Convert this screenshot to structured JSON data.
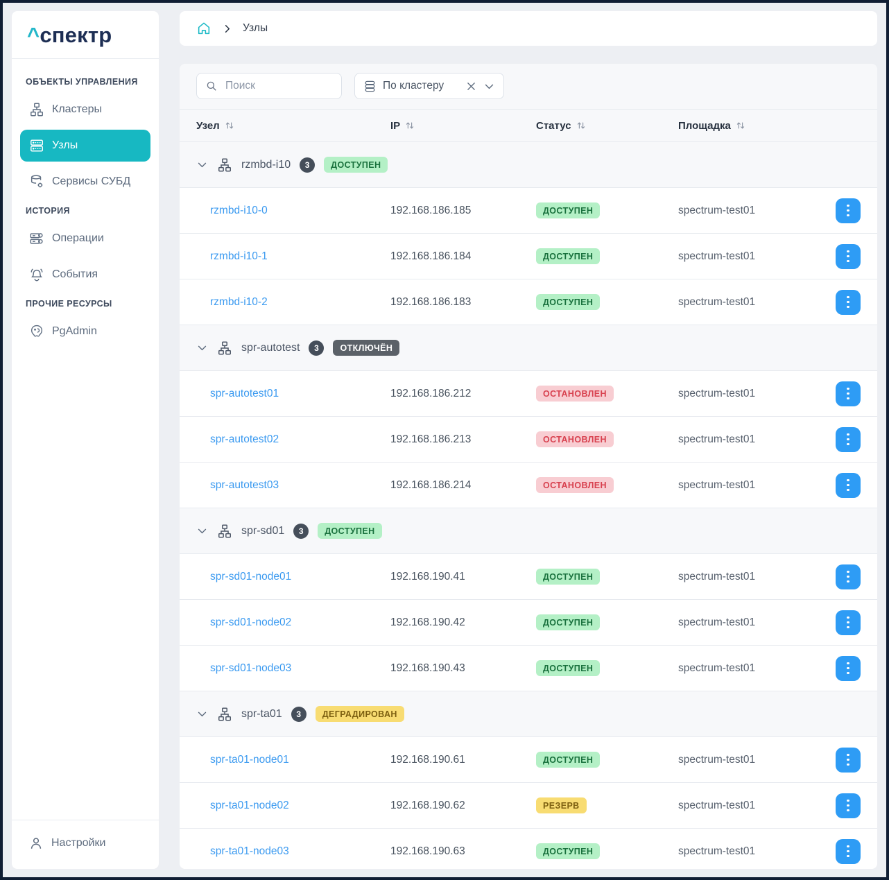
{
  "app": {
    "logo_caret": "^",
    "logo_text": "спектр"
  },
  "colors": {
    "accent_teal": "#17b8c2",
    "logo_navy": "#1d2e54",
    "link_blue": "#3b9af0",
    "action_button_blue": "#2e9cf5",
    "badge_green_bg": "#b4f0c6",
    "badge_green_text": "#19713d",
    "badge_red_bg": "#f8cdd2",
    "badge_red_text": "#d8414f",
    "badge_dark_bg": "#5b6168",
    "badge_dark_text": "#ffffff",
    "badge_yellow_bg": "#f8dc72",
    "badge_yellow_text": "#7c5f10"
  },
  "sidebar": {
    "sections": [
      {
        "label": "ОБЪЕКТЫ УПРАВЛЕНИЯ",
        "items": [
          {
            "label": "Кластеры",
            "icon": "cluster-icon",
            "active": false
          },
          {
            "label": "Узлы",
            "icon": "nodes-icon",
            "active": true
          },
          {
            "label": "Сервисы СУБД",
            "icon": "db-services-icon",
            "active": false
          }
        ]
      },
      {
        "label": "ИСТОРИЯ",
        "items": [
          {
            "label": "Операции",
            "icon": "operations-icon",
            "active": false
          },
          {
            "label": "События",
            "icon": "events-icon",
            "active": false
          }
        ]
      },
      {
        "label": "ПРОЧИЕ РЕСУРСЫ",
        "items": [
          {
            "label": "PgAdmin",
            "icon": "pgadmin-icon",
            "active": false
          }
        ]
      }
    ],
    "footer": {
      "label": "Настройки",
      "icon": "user-icon"
    }
  },
  "breadcrumb": {
    "current": "Узлы"
  },
  "toolbar": {
    "search_placeholder": "Поиск",
    "filter": {
      "label": "По кластеру",
      "icon": "group-by-icon"
    }
  },
  "table": {
    "columns": [
      "Узел",
      "IP",
      "Статус",
      "Площадка"
    ],
    "groups": [
      {
        "name": "rzmbd-i10",
        "count": "3",
        "status": "ДОСТУПЕН",
        "status_type": "available",
        "nodes": [
          {
            "name": "rzmbd-i10-0",
            "ip": "192.168.186.185",
            "status": "ДОСТУПЕН",
            "status_type": "available",
            "site": "spectrum-test01"
          },
          {
            "name": "rzmbd-i10-1",
            "ip": "192.168.186.184",
            "status": "ДОСТУПЕН",
            "status_type": "available",
            "site": "spectrum-test01"
          },
          {
            "name": "rzmbd-i10-2",
            "ip": "192.168.186.183",
            "status": "ДОСТУПЕН",
            "status_type": "available",
            "site": "spectrum-test01"
          }
        ]
      },
      {
        "name": "spr-autotest",
        "count": "3",
        "status": "ОТКЛЮЧЁН",
        "status_type": "disabled",
        "nodes": [
          {
            "name": "spr-autotest01",
            "ip": "192.168.186.212",
            "status": "ОСТАНОВЛЕН",
            "status_type": "stopped",
            "site": "spectrum-test01"
          },
          {
            "name": "spr-autotest02",
            "ip": "192.168.186.213",
            "status": "ОСТАНОВЛЕН",
            "status_type": "stopped",
            "site": "spectrum-test01"
          },
          {
            "name": "spr-autotest03",
            "ip": "192.168.186.214",
            "status": "ОСТАНОВЛЕН",
            "status_type": "stopped",
            "site": "spectrum-test01"
          }
        ]
      },
      {
        "name": "spr-sd01",
        "count": "3",
        "status": "ДОСТУПЕН",
        "status_type": "available",
        "nodes": [
          {
            "name": "spr-sd01-node01",
            "ip": "192.168.190.41",
            "status": "ДОСТУПЕН",
            "status_type": "available",
            "site": "spectrum-test01"
          },
          {
            "name": "spr-sd01-node02",
            "ip": "192.168.190.42",
            "status": "ДОСТУПЕН",
            "status_type": "available",
            "site": "spectrum-test01"
          },
          {
            "name": "spr-sd01-node03",
            "ip": "192.168.190.43",
            "status": "ДОСТУПЕН",
            "status_type": "available",
            "site": "spectrum-test01"
          }
        ]
      },
      {
        "name": "spr-ta01",
        "count": "3",
        "status": "ДЕГРАДИРОВАН",
        "status_type": "degraded",
        "nodes": [
          {
            "name": "spr-ta01-node01",
            "ip": "192.168.190.61",
            "status": "ДОСТУПЕН",
            "status_type": "available",
            "site": "spectrum-test01"
          },
          {
            "name": "spr-ta01-node02",
            "ip": "192.168.190.62",
            "status": "РЕЗЕРВ",
            "status_type": "reserve",
            "site": "spectrum-test01"
          },
          {
            "name": "spr-ta01-node03",
            "ip": "192.168.190.63",
            "status": "ДОСТУПЕН",
            "status_type": "available",
            "site": "spectrum-test01"
          }
        ]
      }
    ]
  }
}
